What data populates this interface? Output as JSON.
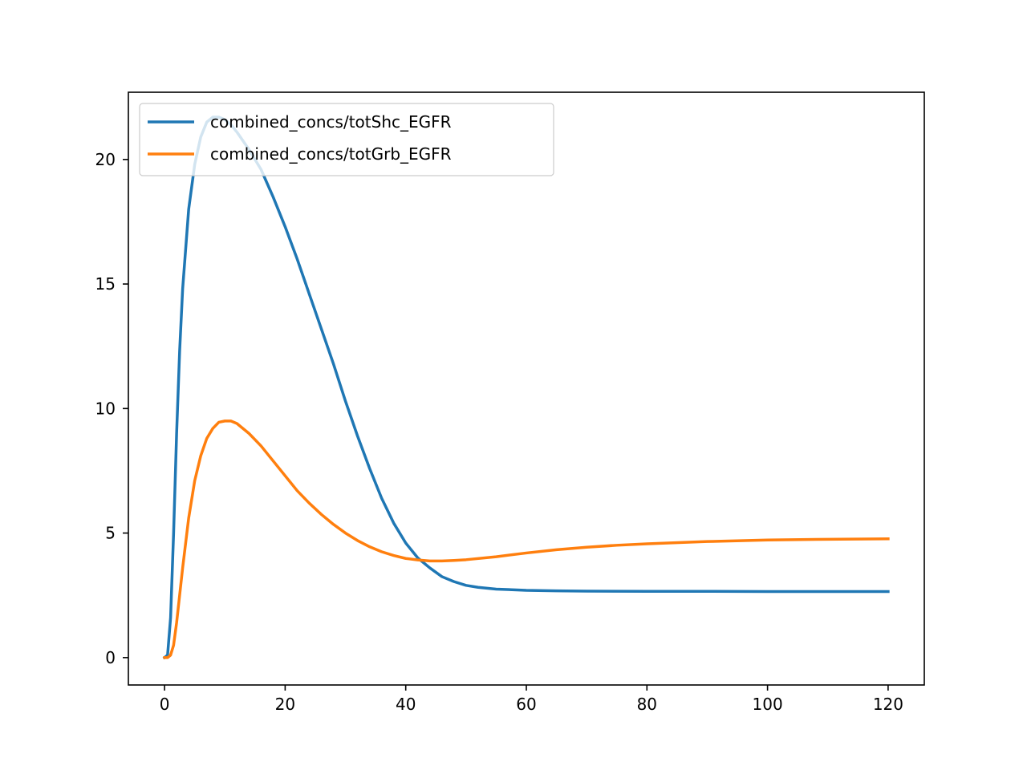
{
  "chart_data": {
    "type": "line",
    "title": "",
    "xlabel": "",
    "ylabel": "",
    "xlim": [
      -6,
      126
    ],
    "ylim": [
      -1.1,
      22.7
    ],
    "xticks": [
      0,
      20,
      40,
      60,
      80,
      100,
      120
    ],
    "yticks": [
      0,
      5,
      10,
      15,
      20
    ],
    "grid": false,
    "legend_position": "top-left",
    "series": [
      {
        "name": "combined_concs/totShc_EGFR",
        "color": "#1f77b4",
        "x": [
          0,
          0.5,
          1,
          1.5,
          2,
          2.5,
          3,
          4,
          5,
          6,
          7,
          8,
          9,
          10,
          11,
          12,
          14,
          16,
          18,
          20,
          22,
          24,
          26,
          28,
          30,
          32,
          34,
          36,
          38,
          40,
          42,
          44,
          46,
          48,
          50,
          52,
          55,
          60,
          65,
          70,
          80,
          90,
          100,
          110,
          120
        ],
        "y": [
          0,
          0.1,
          1.6,
          5.0,
          9.0,
          12.3,
          14.8,
          18.0,
          19.8,
          20.9,
          21.5,
          21.7,
          21.7,
          21.6,
          21.4,
          21.1,
          20.4,
          19.6,
          18.5,
          17.3,
          16.0,
          14.6,
          13.2,
          11.8,
          10.3,
          8.9,
          7.6,
          6.4,
          5.4,
          4.6,
          4.0,
          3.6,
          3.25,
          3.05,
          2.9,
          2.82,
          2.75,
          2.7,
          2.68,
          2.67,
          2.66,
          2.66,
          2.65,
          2.65,
          2.65
        ]
      },
      {
        "name": "combined_concs/totGrb_EGFR",
        "color": "#ff7f0e",
        "x": [
          0,
          0.5,
          1,
          1.5,
          2,
          2.5,
          3,
          4,
          5,
          6,
          7,
          8,
          9,
          10,
          11,
          12,
          14,
          16,
          18,
          20,
          22,
          24,
          26,
          28,
          30,
          32,
          34,
          36,
          38,
          40,
          42,
          44,
          46,
          48,
          50,
          55,
          60,
          65,
          70,
          75,
          80,
          90,
          100,
          110,
          120
        ],
        "y": [
          0,
          0,
          0.1,
          0.5,
          1.4,
          2.5,
          3.6,
          5.6,
          7.1,
          8.1,
          8.8,
          9.2,
          9.45,
          9.5,
          9.5,
          9.4,
          9.0,
          8.5,
          7.9,
          7.3,
          6.7,
          6.2,
          5.75,
          5.35,
          5.0,
          4.7,
          4.45,
          4.25,
          4.1,
          3.98,
          3.92,
          3.88,
          3.88,
          3.9,
          3.93,
          4.05,
          4.2,
          4.33,
          4.43,
          4.51,
          4.57,
          4.66,
          4.72,
          4.75,
          4.77
        ]
      }
    ]
  }
}
